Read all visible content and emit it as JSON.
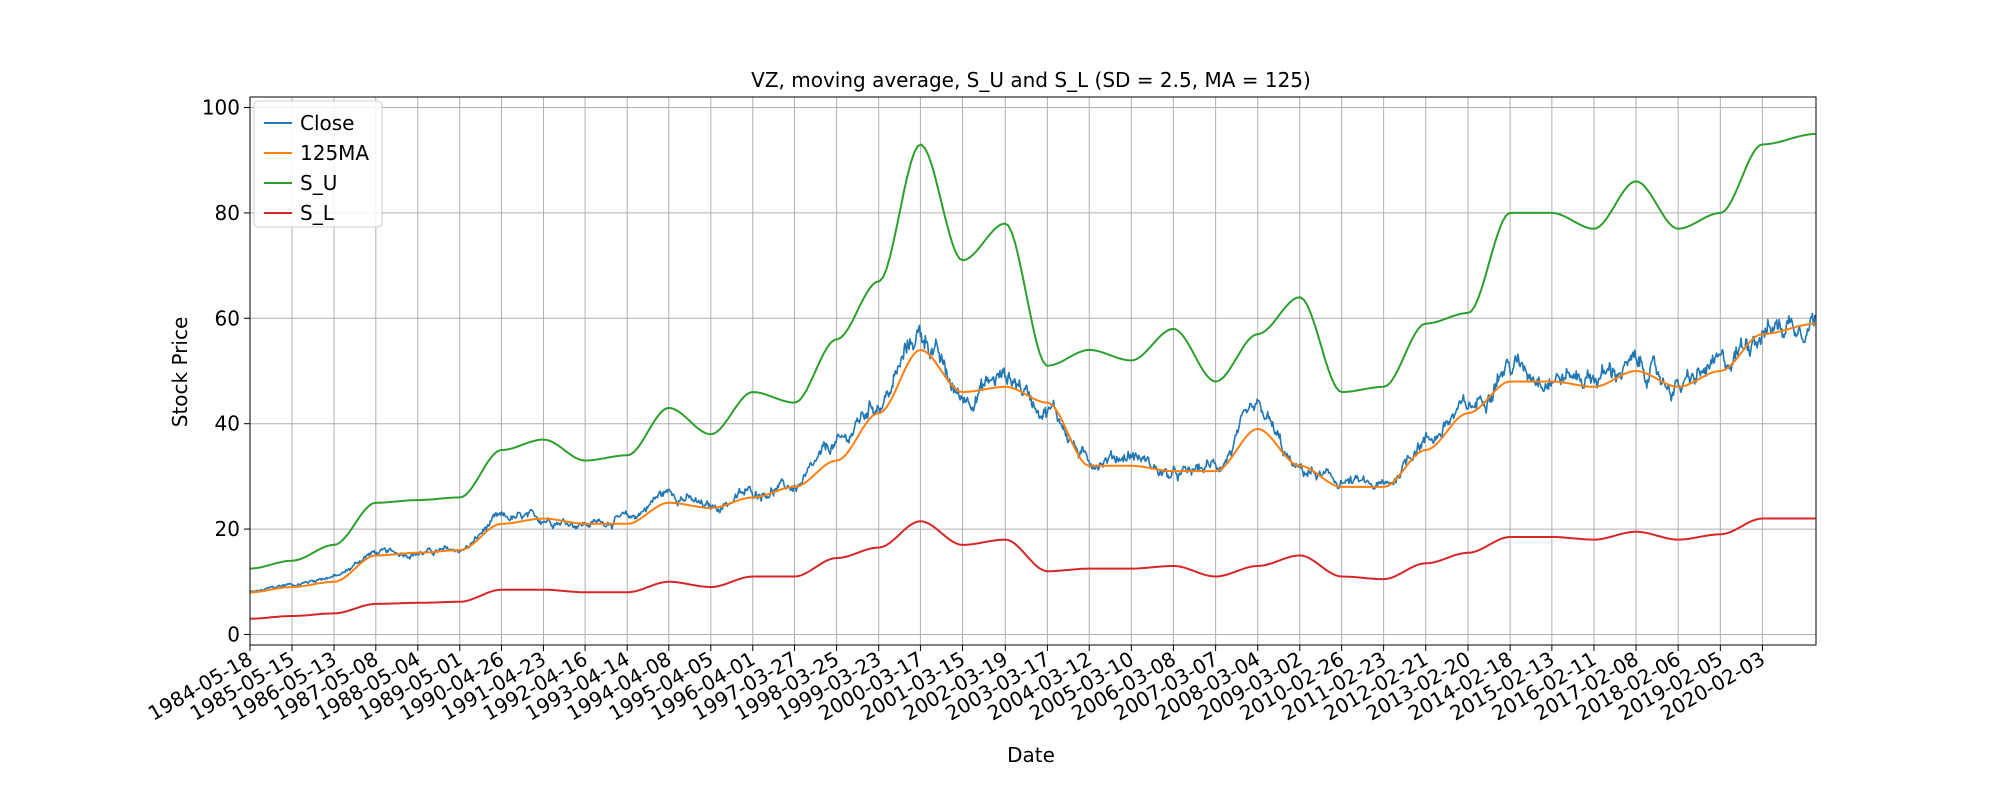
{
  "chart_data": {
    "type": "line",
    "title": "VZ, moving average, S_U and S_L (SD = 2.5, MA = 125)",
    "xlabel": "Date",
    "ylabel": "Stock Price",
    "xlim": [
      "1984-05-18",
      "2021-05-10"
    ],
    "ylim": [
      -2,
      102
    ],
    "grid": true,
    "legend_position": "top-left",
    "x_tick_labels": [
      "1984-05-18",
      "1985-05-15",
      "1986-05-13",
      "1987-05-08",
      "1988-05-04",
      "1989-05-01",
      "1990-04-26",
      "1991-04-23",
      "1992-04-16",
      "1993-04-14",
      "1994-04-08",
      "1995-04-05",
      "1996-04-01",
      "1997-03-27",
      "1998-03-25",
      "1999-03-23",
      "2000-03-17",
      "2001-03-15",
      "2002-03-19",
      "2003-03-17",
      "2004-03-12",
      "2005-03-10",
      "2006-03-08",
      "2007-03-07",
      "2008-03-04",
      "2009-03-02",
      "2010-02-26",
      "2011-02-23",
      "2012-02-21",
      "2013-02-20",
      "2014-02-18",
      "2015-02-13",
      "2016-02-11",
      "2017-02-08",
      "2018-02-06",
      "2019-02-05",
      "2020-02-03"
    ],
    "y_ticks": [
      0,
      20,
      40,
      60,
      80,
      100
    ],
    "series": [
      {
        "name": "Close",
        "color": "#1f77b4",
        "noise": 0.045,
        "x": [
          "1984-05-18",
          "1985-05-15",
          "1986-05-13",
          "1987-05-08",
          "1988-05-04",
          "1989-05-01",
          "1990-04-26",
          "1991-04-23",
          "1992-04-16",
          "1993-04-14",
          "1994-04-08",
          "1995-04-05",
          "1996-04-01",
          "1997-03-27",
          "1998-03-25",
          "1999-03-23",
          "2000-03-17",
          "2001-03-15",
          "2002-03-19",
          "2003-03-17",
          "2004-03-12",
          "2005-03-10",
          "2006-03-08",
          "2007-03-07",
          "2008-03-04",
          "2009-03-02",
          "2010-02-26",
          "2011-02-23",
          "2012-02-21",
          "2013-02-20",
          "2014-02-18",
          "2015-02-13",
          "2016-02-11",
          "2017-02-08",
          "2018-02-06",
          "2019-02-05",
          "2020-02-03",
          "2021-05-10"
        ],
        "y": [
          8,
          9.5,
          11,
          15.5,
          15.5,
          16,
          22,
          22,
          21,
          22,
          27,
          24,
          27,
          28,
          36,
          44,
          57,
          45,
          49,
          43,
          33,
          34,
          30,
          32,
          42,
          31,
          29,
          28,
          37,
          43,
          51,
          49,
          49,
          51,
          47,
          51,
          58,
          60
        ]
      },
      {
        "name": "125MA",
        "color": "#ff7f0e",
        "noise": 0,
        "x": [
          "1984-05-18",
          "1985-05-15",
          "1986-05-13",
          "1987-05-08",
          "1988-05-04",
          "1989-05-01",
          "1990-04-26",
          "1991-04-23",
          "1992-04-16",
          "1993-04-14",
          "1994-04-08",
          "1995-04-05",
          "1996-04-01",
          "1997-03-27",
          "1998-03-25",
          "1999-03-23",
          "2000-03-17",
          "2001-03-15",
          "2002-03-19",
          "2003-03-17",
          "2004-03-12",
          "2005-03-10",
          "2006-03-08",
          "2007-03-07",
          "2008-03-04",
          "2009-03-02",
          "2010-02-26",
          "2011-02-23",
          "2012-02-21",
          "2013-02-20",
          "2014-02-18",
          "2015-02-13",
          "2016-02-11",
          "2017-02-08",
          "2018-02-06",
          "2019-02-05",
          "2020-02-03",
          "2021-05-10"
        ],
        "y": [
          8,
          9,
          10,
          15,
          15.5,
          16,
          21,
          22,
          21,
          21,
          25,
          24,
          26,
          28,
          33,
          42,
          54,
          46,
          47,
          44,
          32,
          32,
          31,
          31,
          39,
          32,
          28,
          28,
          35,
          42,
          48,
          48,
          47,
          50,
          47,
          50,
          57,
          59
        ]
      },
      {
        "name": "S_U",
        "color": "#2ca02c",
        "noise": 0,
        "x": [
          "1984-05-18",
          "1985-05-15",
          "1986-05-13",
          "1987-05-08",
          "1988-05-04",
          "1989-05-01",
          "1990-04-26",
          "1991-04-23",
          "1992-04-16",
          "1993-04-14",
          "1994-04-08",
          "1995-04-05",
          "1996-04-01",
          "1997-03-27",
          "1998-03-25",
          "1999-03-23",
          "2000-03-17",
          "2001-03-15",
          "2002-03-19",
          "2003-03-17",
          "2004-03-12",
          "2005-03-10",
          "2006-03-08",
          "2007-03-07",
          "2008-03-04",
          "2009-03-02",
          "2010-02-26",
          "2011-02-23",
          "2012-02-21",
          "2013-02-20",
          "2014-02-18",
          "2015-02-13",
          "2016-02-11",
          "2017-02-08",
          "2018-02-06",
          "2019-02-05",
          "2020-02-03",
          "2021-05-10"
        ],
        "y": [
          12.5,
          14,
          17,
          25,
          25.5,
          26,
          35,
          37,
          33,
          34,
          43,
          38,
          46,
          44,
          56,
          67,
          93,
          71,
          78,
          51,
          54,
          52,
          58,
          48,
          57,
          64,
          46,
          47,
          59,
          61,
          80,
          80,
          77,
          86,
          77,
          80,
          93,
          95
        ]
      },
      {
        "name": "S_L",
        "color": "#d62728",
        "noise": 0,
        "x": [
          "1984-05-18",
          "1985-05-15",
          "1986-05-13",
          "1987-05-08",
          "1988-05-04",
          "1989-05-01",
          "1990-04-26",
          "1991-04-23",
          "1992-04-16",
          "1993-04-14",
          "1994-04-08",
          "1995-04-05",
          "1996-04-01",
          "1997-03-27",
          "1998-03-25",
          "1999-03-23",
          "2000-03-17",
          "2001-03-15",
          "2002-03-19",
          "2003-03-17",
          "2004-03-12",
          "2005-03-10",
          "2006-03-08",
          "2007-03-07",
          "2008-03-04",
          "2009-03-02",
          "2010-02-26",
          "2011-02-23",
          "2012-02-21",
          "2013-02-20",
          "2014-02-18",
          "2015-02-13",
          "2016-02-11",
          "2017-02-08",
          "2018-02-06",
          "2019-02-05",
          "2020-02-03",
          "2021-05-10"
        ],
        "y": [
          3,
          3.5,
          4,
          5.8,
          6,
          6.2,
          8.5,
          8.5,
          8,
          8,
          10,
          9,
          11,
          11,
          14.5,
          16.5,
          21.5,
          17,
          18,
          12,
          12.5,
          12.5,
          13,
          11,
          13,
          15,
          11,
          10.5,
          13.5,
          15.5,
          18.5,
          18.5,
          18,
          19.5,
          18,
          19,
          22,
          22
        ]
      }
    ]
  }
}
